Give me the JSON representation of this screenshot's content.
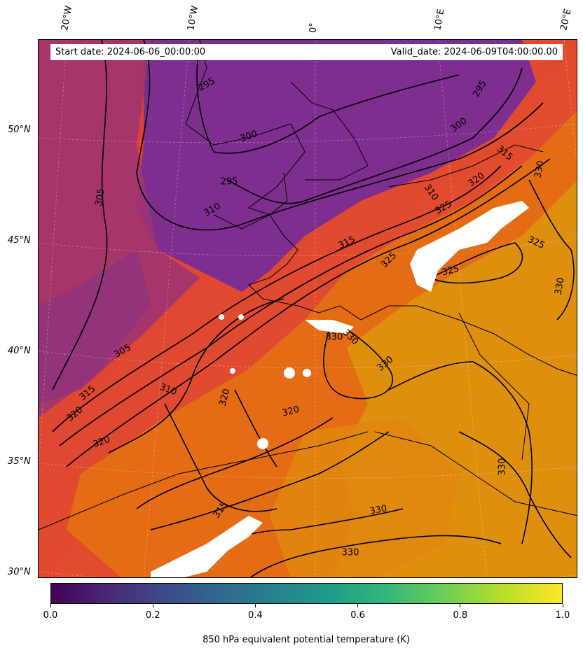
{
  "header": {
    "start_date": "Start date: 2024-06-06_00:00:00",
    "valid_date": "Valid_date: 2024-06-09T04:00:00.00"
  },
  "axes": {
    "longitude_labels": [
      "20°W",
      "10°W",
      "0°",
      "10°E",
      "20°E"
    ],
    "latitude_labels": [
      "50°N",
      "45°N",
      "40°N",
      "35°N",
      "30°N"
    ]
  },
  "colorbar": {
    "title": "850 hPa equivalent potential temperature (K)",
    "ticks": [
      "0.0",
      "0.2",
      "0.4",
      "0.6",
      "0.8",
      "1.0"
    ],
    "colormap": "viridis"
  },
  "map_colors": {
    "cold": "#7e2e8f",
    "mid": "#e8432e",
    "warm": "#e5780f",
    "hot": "#e1960c"
  },
  "contour_labels": [
    "295",
    "295",
    "295",
    "300",
    "300",
    "305",
    "305",
    "310",
    "310",
    "310",
    "315",
    "315",
    "315",
    "315",
    "320",
    "320",
    "320",
    "320",
    "320",
    "325",
    "325",
    "325",
    "325",
    "330",
    "330",
    "330",
    "330",
    "330",
    "330",
    "330",
    "330"
  ]
}
